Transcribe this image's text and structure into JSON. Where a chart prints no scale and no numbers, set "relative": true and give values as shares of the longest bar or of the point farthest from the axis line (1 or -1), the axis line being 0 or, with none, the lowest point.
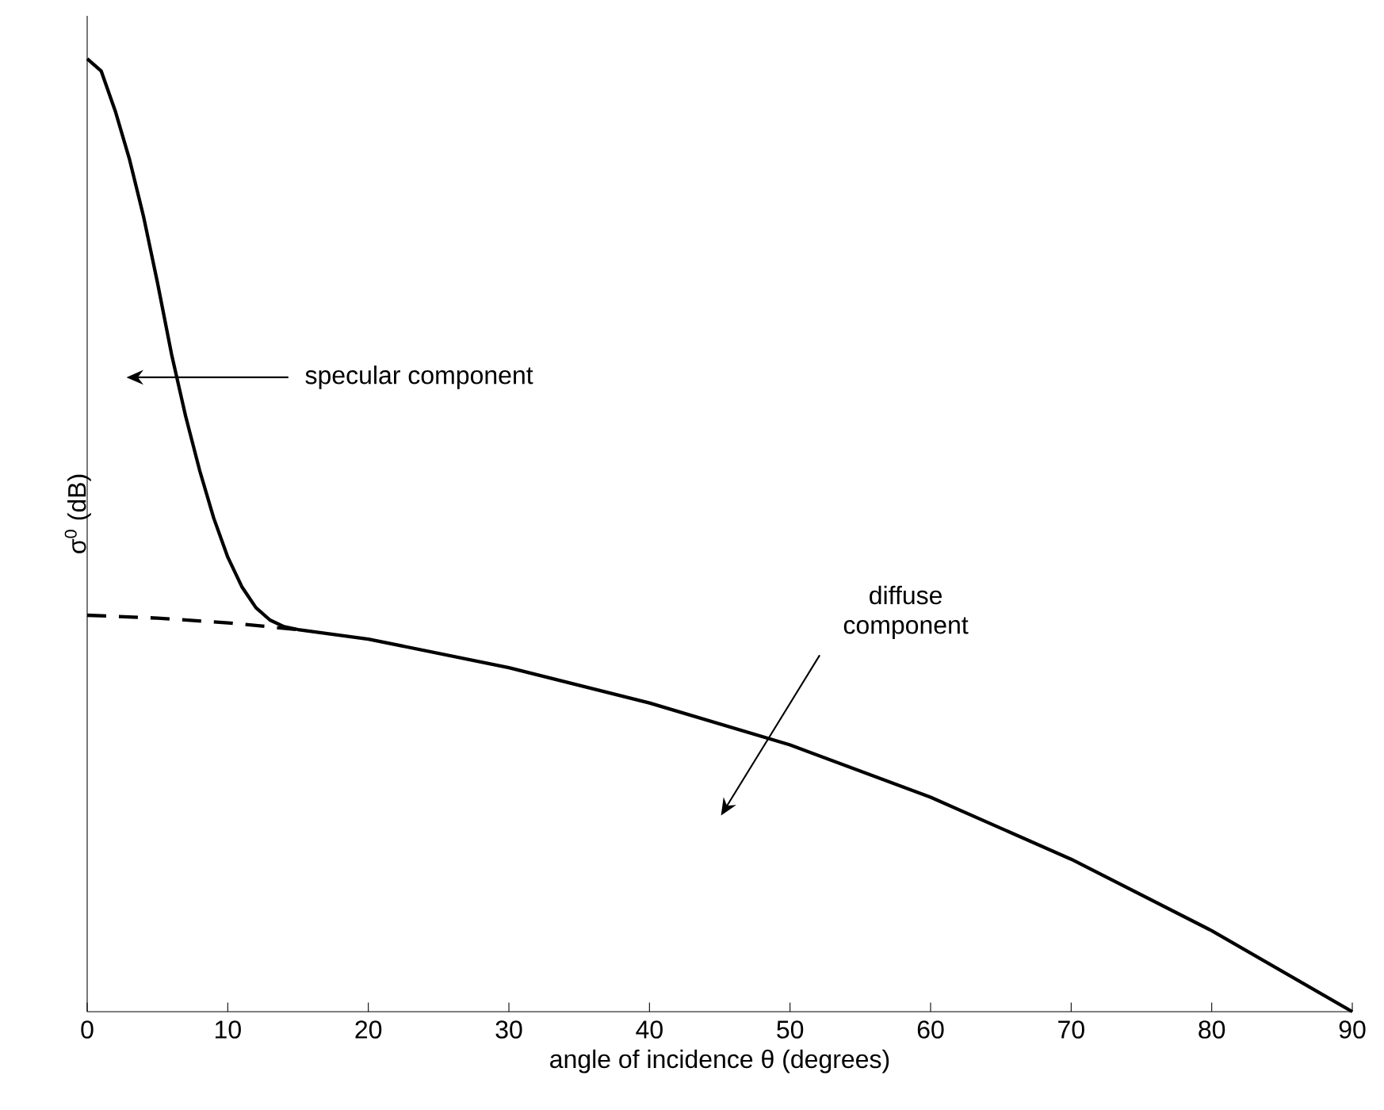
{
  "chart_data": {
    "type": "line",
    "xlabel": "angle of incidence θ (degrees)",
    "ylabel": "σ$^{0}$ (dB)",
    "relative": true,
    "xlim": [
      0,
      90
    ],
    "xticks": [
      0,
      10,
      20,
      30,
      40,
      50,
      60,
      70,
      80,
      90
    ],
    "annotations": [
      "specular component",
      "diffuse component"
    ],
    "series": [
      {
        "color": "#000000",
        "line_style": "solid",
        "x": [
          0,
          1,
          2,
          3,
          4,
          5,
          6,
          7,
          8,
          9,
          10,
          11,
          12,
          13,
          14,
          15,
          20,
          30,
          40,
          50,
          60,
          70,
          80,
          90
        ],
        "values": [
          1.0,
          0.987,
          0.945,
          0.895,
          0.835,
          0.765,
          0.69,
          0.625,
          0.568,
          0.518,
          0.477,
          0.446,
          0.424,
          0.411,
          0.404,
          0.401,
          0.391,
          0.361,
          0.324,
          0.28,
          0.225,
          0.16,
          0.085,
          0
        ]
      },
      {
        "color": "#000000",
        "line_style": "dashed",
        "x": [
          0,
          5,
          10,
          15
        ],
        "values": [
          0.416,
          0.413,
          0.408,
          0.401
        ]
      }
    ]
  }
}
